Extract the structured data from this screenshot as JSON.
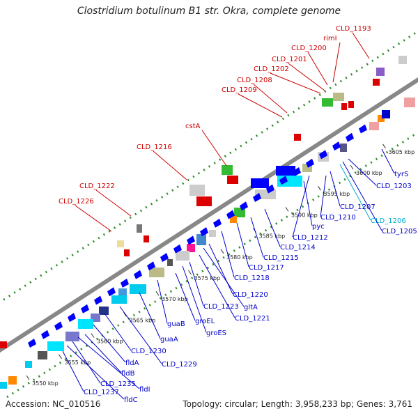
{
  "title": "Clostridium botulinum B1 str. Okra, complete genome",
  "footer": {
    "accession": "Accession: NC_010516",
    "summary": "Topology: circular; Length: 3,958,233 bp; Genes: 3,761"
  },
  "colors": {
    "backbone": "#888888",
    "dots": "#2e8b2e",
    "label_red": "#cc0000",
    "label_blue": "#0000cc",
    "label_cyan": "#00aacc"
  },
  "ticks": [
    "3550 kbp",
    "3555 kbp",
    "3560 kbp",
    "3565 kbp",
    "3570 kbp",
    "3575 kbp",
    "3580 kbp",
    "3585 kbp",
    "3590 kbp",
    "3595 kbp",
    "3600 kbp",
    "3605 kbp"
  ],
  "labels": {
    "top": [
      "CLD_1193",
      "rimI",
      "CLD_1200",
      "CLD_1201",
      "CLD_1202",
      "CLD_1208",
      "CLD_1209",
      "cstA",
      "CLD_1216",
      "CLD_1222",
      "CLD_1226"
    ],
    "bottom": [
      "tyrS",
      "CLD_1203",
      "CLD_1206",
      "CLD_1205",
      "CLD_1207",
      "CLD_1210",
      "CLD_1212",
      "pyc",
      "CLD_1214",
      "CLD_1215",
      "CLD_1217",
      "CLD_1218",
      "CLD_1220",
      "gltA",
      "CLD_1221",
      "CLD_1223",
      "groES",
      "groEL",
      "guaB",
      "guaA",
      "CLD_1229",
      "CLD_1230",
      "fldA",
      "fldB",
      "fldI",
      "CLD_1235",
      "fldC",
      "CLD_1237"
    ]
  }
}
